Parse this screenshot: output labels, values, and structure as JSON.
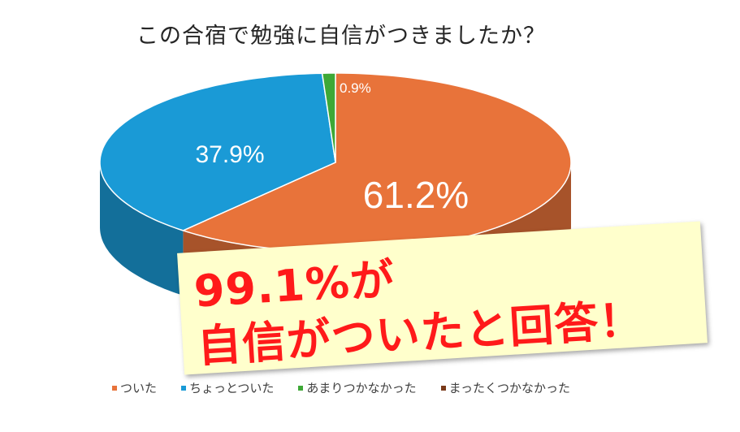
{
  "chart_data": {
    "type": "pie",
    "title": "この合宿で勉強に自信がつきましたか？",
    "slices": [
      {
        "name": "ついた",
        "value": 61.2,
        "label": "61.2%",
        "color": "#e8733a"
      },
      {
        "name": "ちょっとついた",
        "value": 37.9,
        "label": "37.9%",
        "color": "#1a9ad6"
      },
      {
        "name": "あまりつかなかった",
        "value": 0.9,
        "label": "0.9%",
        "color": "#3ea836"
      },
      {
        "name": "まったくつかなかった",
        "value": 0.0,
        "label": "",
        "color": "#7a3a1a"
      }
    ],
    "legend_position": "bottom"
  },
  "callout": {
    "line1": "99.1%が",
    "line2": "自信がついたと回答！"
  }
}
